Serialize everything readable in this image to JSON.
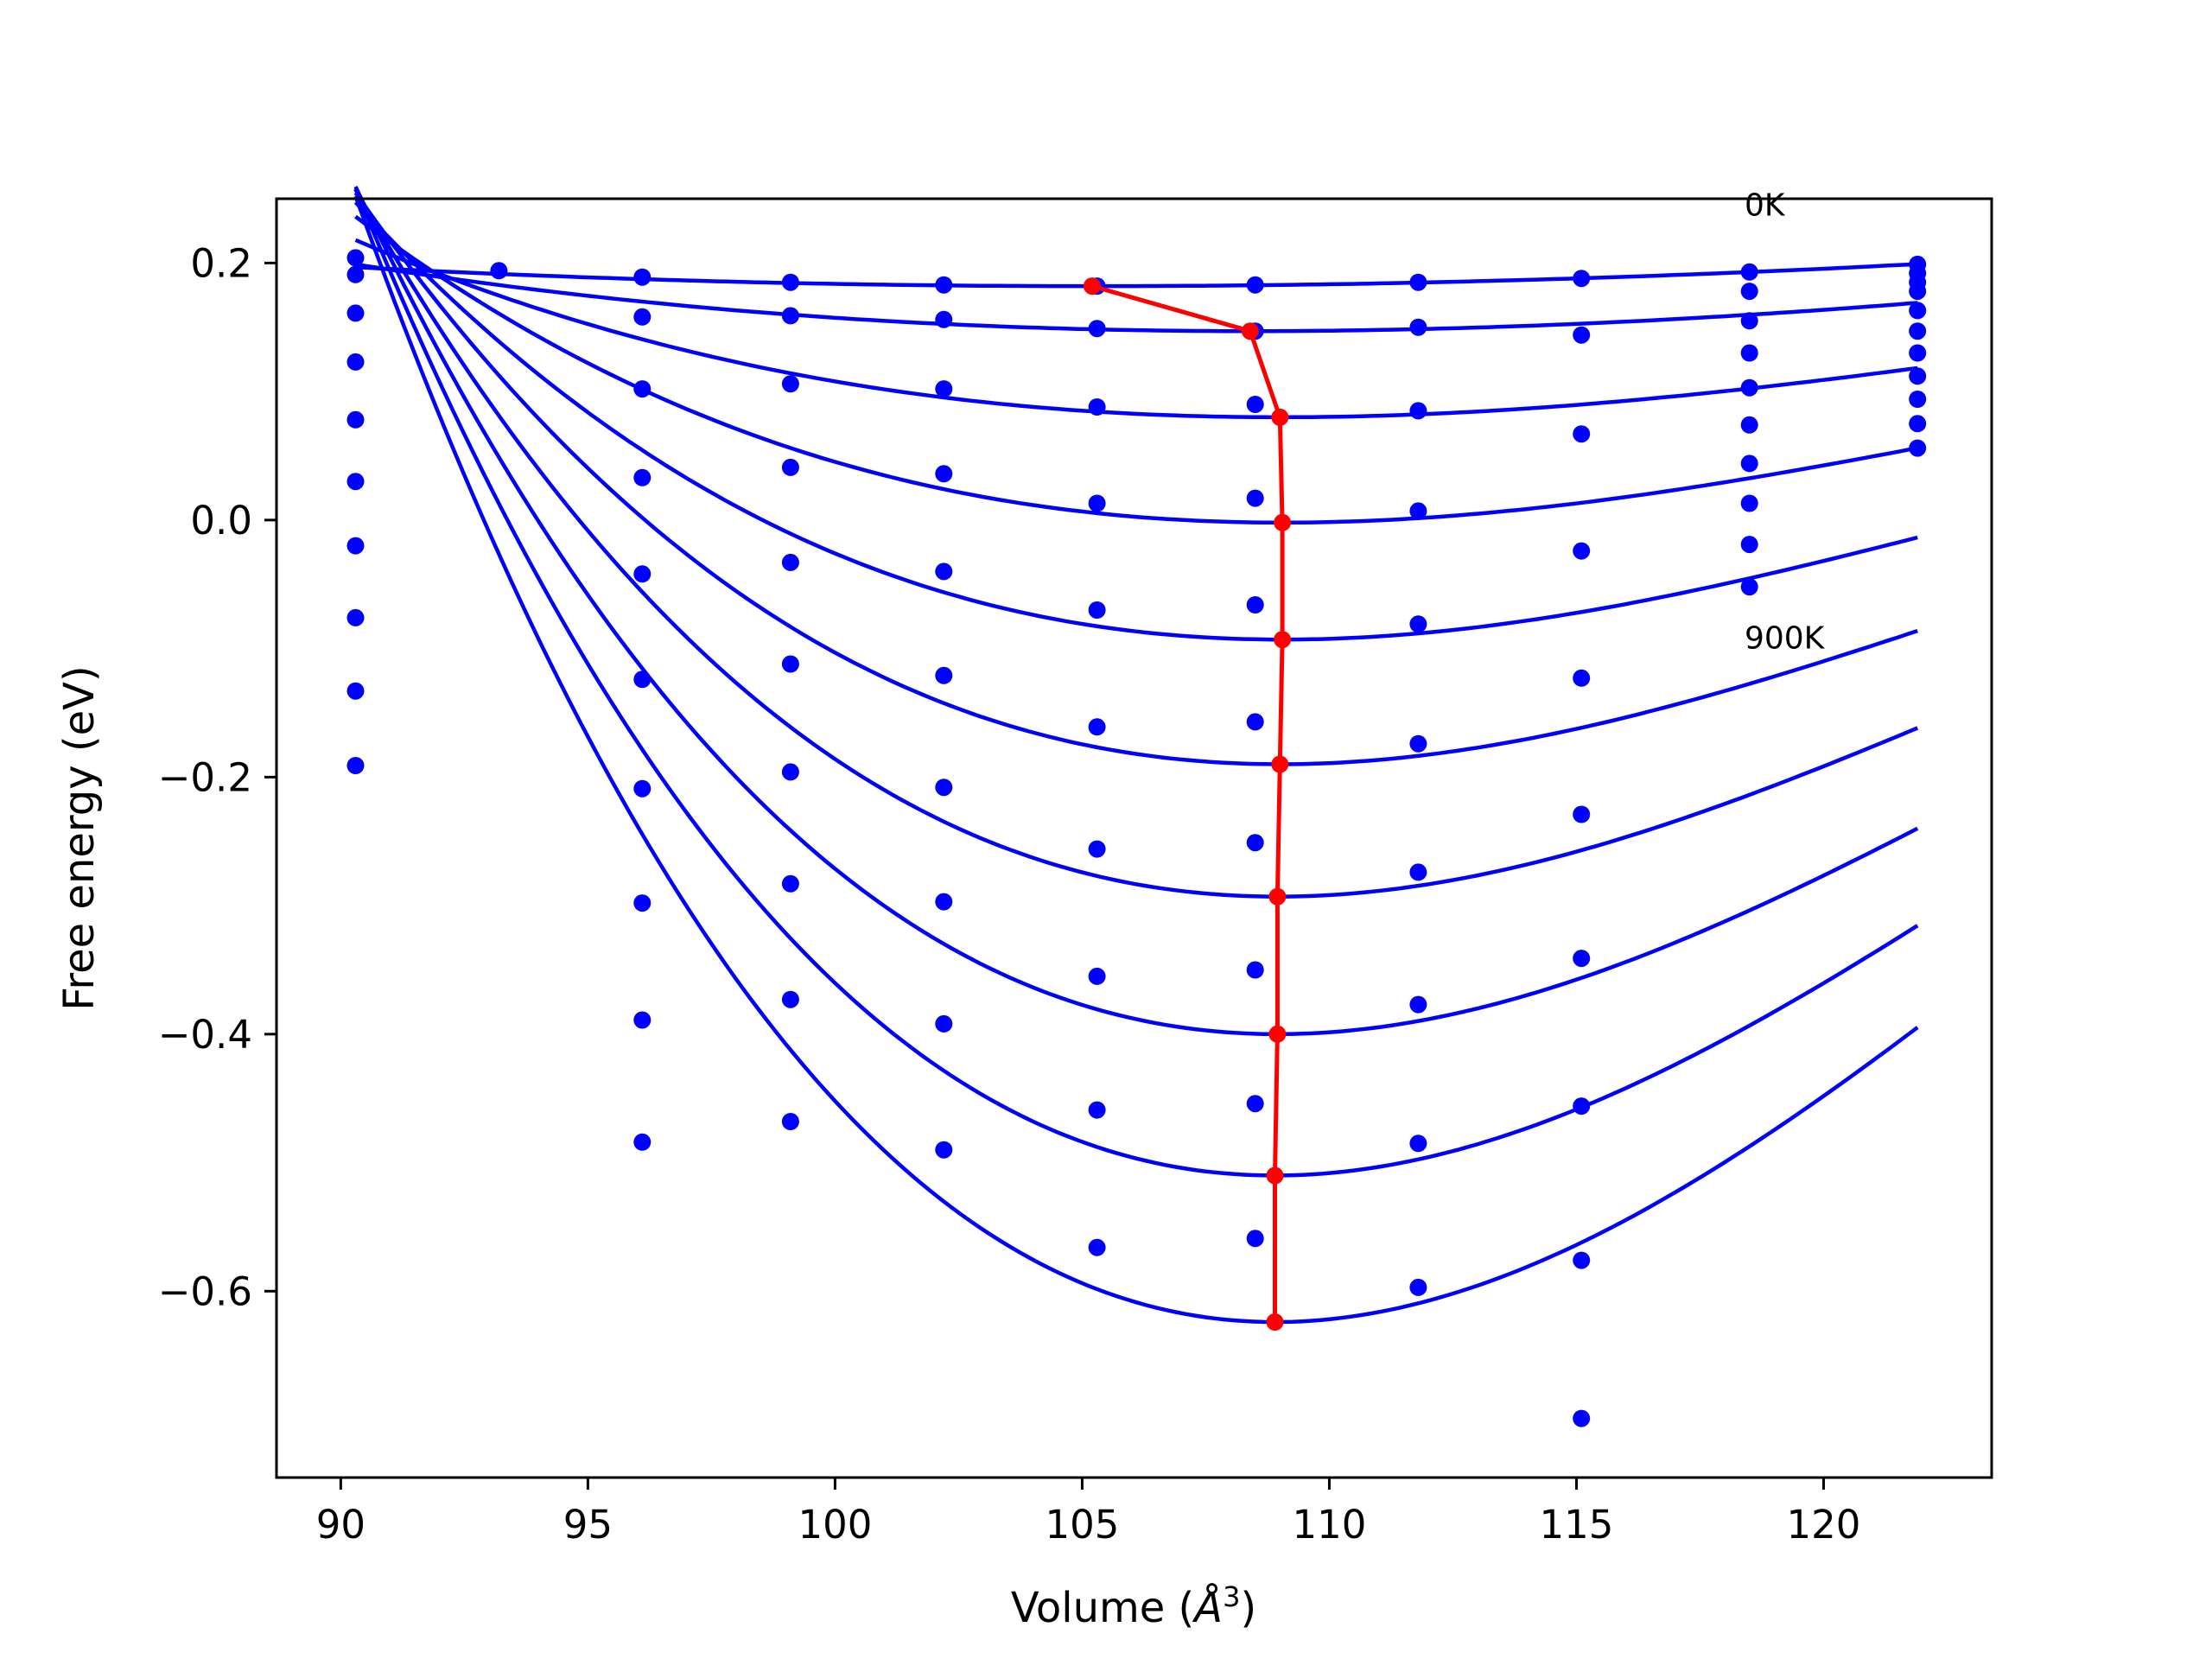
{
  "chart_data": {
    "type": "scatter",
    "xlabel": "Volume",
    "xlabel_unit_base": "Å",
    "xlabel_unit_exp": "3",
    "ylabel": "Free energy (eV)",
    "xlim": [
      88.7,
      123.4
    ],
    "ylim": [
      -0.745,
      0.25
    ],
    "x_ticks": [
      90,
      95,
      100,
      105,
      110,
      115,
      120
    ],
    "y_ticks": [
      -0.6,
      -0.4,
      -0.2,
      0.0,
      0.2
    ],
    "y_tick_labels": [
      "−0.6",
      "−0.4",
      "−0.2",
      "0.0",
      "0.2"
    ],
    "grid": false,
    "colors": {
      "series": "#0000ff",
      "equilibrium": "#ff0000",
      "axes": "#000000"
    },
    "annotations": [
      {
        "text": "0K",
        "x": 118.4,
        "y": 0.245
      },
      {
        "text": "900K",
        "x": 118.4,
        "y": -0.092
      }
    ],
    "volumes": [
      90.3,
      93.2,
      96.1,
      99.1,
      102.2,
      105.3,
      108.5,
      111.8,
      115.1,
      118.5,
      121.9
    ],
    "series": [
      {
        "x": [
          90.3,
          93.2,
          96.1,
          99.1,
          102.2,
          105.3,
          108.5,
          111.8,
          115.1,
          118.5,
          121.9
        ],
        "values": [
          0.204,
          0.194,
          0.189,
          0.185,
          0.183,
          0.182,
          0.183,
          0.185,
          0.188,
          0.193,
          0.199
        ],
        "fit": {
          "v0": 105.2,
          "e0": 0.182,
          "a": 6.41e-05,
          "b": 1.5e-07,
          "xmin": 90.3,
          "xmax": 121.9
        }
      },
      {
        "x": [
          90.3,
          96.1,
          99.1,
          102.2,
          105.3,
          108.5,
          111.8,
          118.5,
          121.9
        ],
        "values": [
          0.191,
          0.158,
          0.159,
          0.156,
          0.149,
          0.147,
          0.15,
          0.178,
          0.192
        ],
        "fit": {
          "v0": 108.4,
          "e0": 0.147,
          "a": 0.000137,
          "b": 1.2e-06,
          "xmin": 90.3,
          "xmax": 121.9
        }
      },
      {
        "x": [
          90.3,
          96.1,
          99.1,
          102.2,
          105.3,
          108.5,
          111.8,
          115.1,
          118.5,
          121.9
        ],
        "values": [
          0.161,
          0.102,
          0.106,
          0.102,
          0.088,
          0.09,
          0.085,
          0.144,
          0.155,
          0.185
        ],
        "fit": {
          "v0": 109.0,
          "e0": 0.08,
          "a": 0.000297,
          "b": 5.2e-06,
          "xmin": 90.3,
          "xmax": 121.9
        }
      },
      {
        "x": [
          90.3,
          96.1,
          99.1,
          102.2,
          105.3,
          108.5,
          111.8,
          115.1,
          118.5,
          121.9
        ],
        "values": [
          0.123,
          0.033,
          0.041,
          0.036,
          0.013,
          0.017,
          0.007,
          0.067,
          0.13,
          0.178
        ],
        "fit": {
          "v0": 109.05,
          "e0": -0.002,
          "a": 0.000484,
          "b": 1.03e-05,
          "xmin": 90.3,
          "xmax": 121.9
        }
      },
      {
        "x": [
          90.3,
          96.1,
          99.1,
          102.2,
          105.3,
          108.5,
          111.8,
          115.1,
          118.5,
          121.9
        ],
        "values": [
          0.078,
          -0.042,
          -0.033,
          -0.04,
          -0.07,
          -0.066,
          -0.081,
          -0.024,
          0.103,
          0.163
        ],
        "fit": {
          "v0": 109.05,
          "e0": -0.093,
          "a": 0.000679,
          "b": 1.54e-05,
          "xmin": 90.3,
          "xmax": 121.9
        }
      },
      {
        "x": [
          90.3,
          96.1,
          99.1,
          102.2,
          105.3,
          108.5,
          111.8,
          115.1,
          118.5,
          121.9
        ],
        "values": [
          0.03,
          -0.124,
          -0.112,
          -0.121,
          -0.161,
          -0.157,
          -0.174,
          -0.123,
          0.074,
          0.147
        ],
        "fit": {
          "v0": 109.0,
          "e0": -0.19,
          "a": 0.000888,
          "b": 2.05e-05,
          "xmin": 90.3,
          "xmax": 121.9
        }
      },
      {
        "x": [
          90.3,
          96.1,
          99.1,
          102.2,
          105.3,
          108.5,
          111.8,
          115.1,
          118.5,
          121.9
        ],
        "values": [
          -0.02,
          -0.209,
          -0.196,
          -0.208,
          -0.256,
          -0.251,
          -0.274,
          -0.229,
          0.044,
          0.13
        ],
        "fit": {
          "v0": 108.95,
          "e0": -0.293,
          "a": 0.00111,
          "b": 2.53e-05,
          "xmin": 90.3,
          "xmax": 121.9
        }
      },
      {
        "x": [
          90.3,
          96.1,
          99.1,
          102.2,
          105.3,
          108.5,
          111.8,
          115.1,
          118.5,
          121.9
        ],
        "values": [
          -0.076,
          -0.298,
          -0.283,
          -0.297,
          -0.355,
          -0.35,
          -0.377,
          -0.341,
          0.013,
          0.112
        ],
        "fit": {
          "v0": 108.95,
          "e0": -0.4,
          "a": 0.00134,
          "b": 2.98e-05,
          "xmin": 90.3,
          "xmax": 121.9
        }
      },
      {
        "x": [
          90.3,
          96.1,
          99.1,
          102.2,
          105.3,
          108.5,
          111.8,
          115.1,
          118.5,
          121.9
        ],
        "values": [
          -0.133,
          -0.389,
          -0.373,
          -0.392,
          -0.459,
          -0.454,
          -0.485,
          -0.456,
          -0.019,
          0.094
        ],
        "fit": {
          "v0": 108.9,
          "e0": -0.51,
          "a": 0.00159,
          "b": 3.38e-05,
          "xmin": 90.3,
          "xmax": 121.9
        }
      },
      {
        "x": [
          90.3,
          96.1,
          99.1,
          102.2,
          105.3,
          108.5,
          111.8,
          115.1,
          118.5,
          121.9
        ],
        "values": [
          -0.191,
          -0.484,
          -0.468,
          -0.49,
          -0.566,
          -0.559,
          -0.597,
          -0.576,
          -0.052,
          0.075
        ],
        "fit": {
          "v0": 108.9,
          "e0": -0.624,
          "a": 0.00184,
          "b": 3.72e-05,
          "xmin": 90.3,
          "xmax": 121.9
        }
      },
      {
        "x": [
          121.9
        ],
        "values": [
          0.056
        ]
      },
      {
        "x": [
          115.1
        ],
        "values": [
          -0.699
        ]
      }
    ],
    "equilibrium": {
      "x": [
        105.2,
        108.4,
        109.0,
        109.05,
        109.05,
        109.0,
        108.95,
        108.95,
        108.9,
        108.9
      ],
      "values": [
        0.182,
        0.147,
        0.08,
        -0.002,
        -0.093,
        -0.19,
        -0.293,
        -0.4,
        -0.51,
        -0.624
      ]
    }
  }
}
